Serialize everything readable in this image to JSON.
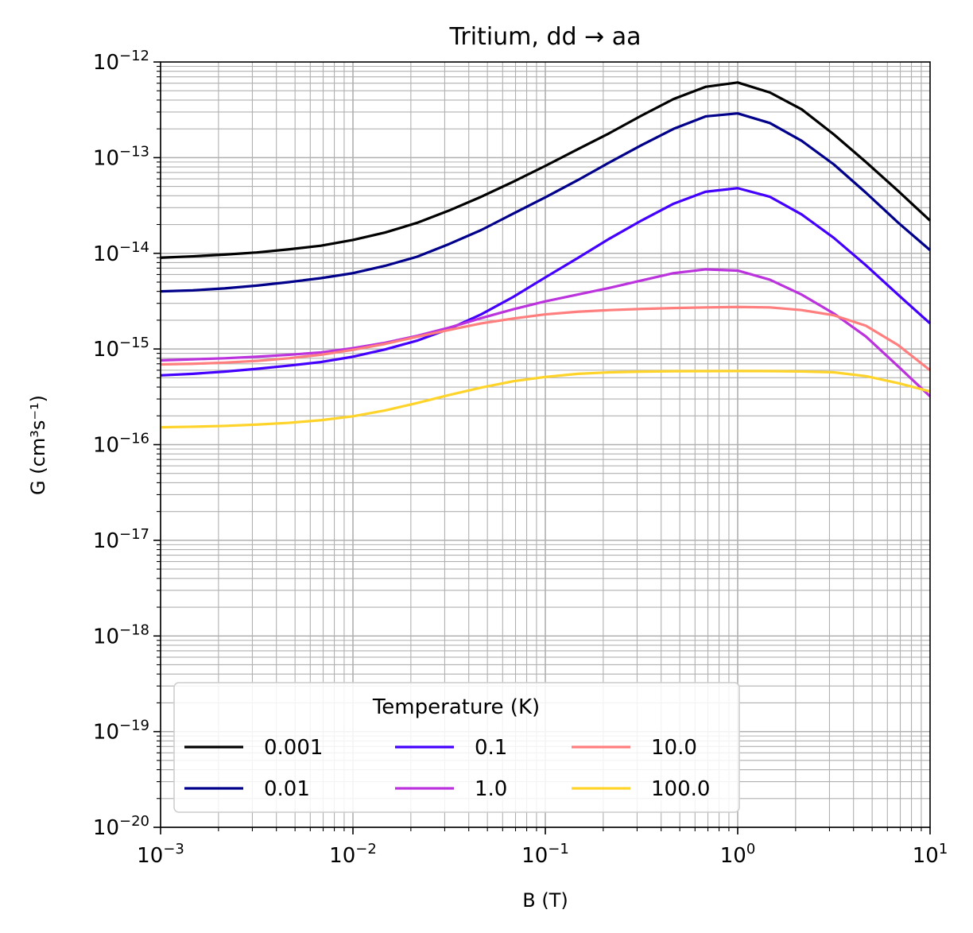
{
  "chart_data": {
    "type": "line",
    "title": "Tritium, dd → aa",
    "xlabel": "B (T)",
    "ylabel": "G (cm³s⁻¹)",
    "xscale": "log",
    "yscale": "log",
    "xlim": [
      0.001,
      10
    ],
    "ylim": [
      1e-20,
      1e-12
    ],
    "grid": true,
    "legend": {
      "title": "Temperature (K)",
      "placement": "lower-left",
      "columns": 3
    },
    "x_ticks": [
      {
        "base": "10",
        "exp": "−3"
      },
      {
        "base": "10",
        "exp": "−2"
      },
      {
        "base": "10",
        "exp": "−1"
      },
      {
        "base": "10",
        "exp": "0"
      },
      {
        "base": "10",
        "exp": "1"
      }
    ],
    "y_ticks": [
      {
        "base": "10",
        "exp": "−20"
      },
      {
        "base": "10",
        "exp": "−19"
      },
      {
        "base": "10",
        "exp": "−18"
      },
      {
        "base": "10",
        "exp": "−17"
      },
      {
        "base": "10",
        "exp": "−16"
      },
      {
        "base": "10",
        "exp": "−15"
      },
      {
        "base": "10",
        "exp": "−14"
      },
      {
        "base": "10",
        "exp": "−13"
      },
      {
        "base": "10",
        "exp": "−12"
      }
    ],
    "x": [
      0.001,
      0.00147,
      0.00215,
      0.00316,
      0.00464,
      0.00681,
      0.01,
      0.0147,
      0.0215,
      0.0316,
      0.0464,
      0.0681,
      0.1,
      0.147,
      0.215,
      0.316,
      0.464,
      0.681,
      1.0,
      1.47,
      2.15,
      3.16,
      4.64,
      6.81,
      10.0
    ],
    "series": [
      {
        "name": "0.001",
        "color": "#000000",
        "values": [
          9e-15,
          9.3e-15,
          9.7e-15,
          1.02e-14,
          1.1e-14,
          1.2e-14,
          1.38e-14,
          1.65e-14,
          2.08e-14,
          2.8e-14,
          3.9e-14,
          5.6e-14,
          8.2e-14,
          1.22e-13,
          1.8e-13,
          2.75e-13,
          4.1e-13,
          5.5e-13,
          6.1e-13,
          4.8e-13,
          3.2e-13,
          1.75e-13,
          9e-14,
          4.5e-14,
          2.2e-14
        ]
      },
      {
        "name": "0.01",
        "color": "#00008b",
        "values": [
          4e-15,
          4.1e-15,
          4.3e-15,
          4.6e-15,
          5e-15,
          5.5e-15,
          6.2e-15,
          7.4e-15,
          9.2e-15,
          1.25e-14,
          1.75e-14,
          2.6e-14,
          3.85e-14,
          5.8e-14,
          8.9e-14,
          1.35e-13,
          2e-13,
          2.7e-13,
          2.9e-13,
          2.3e-13,
          1.5e-13,
          8.5e-14,
          4.3e-14,
          2.1e-14,
          1.08e-14
        ]
      },
      {
        "name": "0.1",
        "color": "#4400ff",
        "values": [
          5.3e-16,
          5.5e-16,
          5.8e-16,
          6.2e-16,
          6.7e-16,
          7.3e-16,
          8.3e-16,
          9.9e-16,
          1.22e-15,
          1.62e-15,
          2.3e-15,
          3.5e-15,
          5.6e-15,
          8.9e-15,
          1.42e-14,
          2.2e-14,
          3.3e-14,
          4.4e-14,
          4.8e-14,
          3.9e-14,
          2.55e-14,
          1.45e-14,
          7.5e-15,
          3.7e-15,
          1.85e-15
        ]
      },
      {
        "name": "1.0",
        "color": "#bb33dd",
        "values": [
          7.6e-16,
          7.8e-16,
          8e-16,
          8.3e-16,
          8.7e-16,
          9.2e-16,
          1.02e-15,
          1.16e-15,
          1.37e-15,
          1.67e-15,
          2.1e-15,
          2.6e-15,
          3.15e-15,
          3.7e-15,
          4.35e-15,
          5.2e-15,
          6.2e-15,
          6.8e-15,
          6.6e-15,
          5.3e-15,
          3.7e-15,
          2.35e-15,
          1.35e-15,
          6.6e-16,
          3.2e-16
        ]
      },
      {
        "name": "10.0",
        "color": "#ff7f7f",
        "values": [
          6.9e-16,
          7e-16,
          7.2e-16,
          7.5e-16,
          8e-16,
          8.7e-16,
          9.8e-16,
          1.13e-15,
          1.34e-15,
          1.58e-15,
          1.85e-15,
          2.08e-15,
          2.3e-15,
          2.45e-15,
          2.55e-15,
          2.62e-15,
          2.68e-15,
          2.72e-15,
          2.75e-15,
          2.72e-15,
          2.55e-15,
          2.25e-15,
          1.75e-15,
          1.1e-15,
          6e-16
        ]
      },
      {
        "name": "100.0",
        "color": "#ffd42a",
        "values": [
          1.52e-16,
          1.54e-16,
          1.57e-16,
          1.62e-16,
          1.69e-16,
          1.8e-16,
          1.98e-16,
          2.28e-16,
          2.72e-16,
          3.3e-16,
          3.95e-16,
          4.6e-16,
          5.1e-16,
          5.5e-16,
          5.7e-16,
          5.8e-16,
          5.85e-16,
          5.87e-16,
          5.88e-16,
          5.87e-16,
          5.82e-16,
          5.7e-16,
          5.2e-16,
          4.4e-16,
          3.6e-16
        ]
      }
    ]
  }
}
